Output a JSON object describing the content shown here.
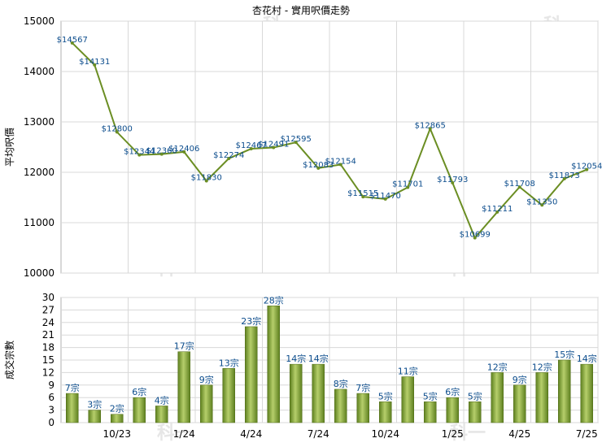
{
  "chart_data": [
    {
      "type": "line",
      "title": "杏花村 - 實用呎價走勢",
      "ylabel": "平均呎價",
      "ylim": [
        10000,
        15000
      ],
      "yticks": [
        10000,
        11000,
        12000,
        13000,
        14000,
        15000
      ],
      "grid": true,
      "color": "#6b8e23",
      "values": [
        14567,
        14131,
        12800,
        12344,
        12360,
        12406,
        11830,
        12274,
        12467,
        12491,
        12595,
        12083,
        12154,
        11515,
        11470,
        11701,
        12865,
        11793,
        10699,
        11211,
        11708,
        11350,
        11873,
        12054
      ],
      "labels": [
        "$14567",
        "$14131",
        "$12800",
        "$12344",
        "$12360",
        "$12406",
        "$11830",
        "$12274",
        "$12467",
        "$12491",
        "$12595",
        "$12083",
        "$12154",
        "$11515",
        "$11470",
        "$11701",
        "$12865",
        "$11793",
        "$10699",
        "$11211",
        "$11708",
        "$11350",
        "$11873",
        "$12054"
      ]
    },
    {
      "type": "bar",
      "ylabel": "成交宗數",
      "ylim": [
        0,
        30
      ],
      "yticks": [
        0,
        3,
        6,
        9,
        12,
        15,
        18,
        21,
        24,
        27,
        30
      ],
      "grid": true,
      "color": "#7a9a2e",
      "values": [
        7,
        3,
        2,
        6,
        4,
        17,
        9,
        13,
        23,
        28,
        14,
        14,
        8,
        7,
        5,
        11,
        5,
        6,
        5,
        12,
        9,
        12,
        15,
        14
      ],
      "labels": [
        "7宗",
        "3宗",
        "2宗",
        "6宗",
        "4宗",
        "17宗",
        "9宗",
        "13宗",
        "23宗",
        "28宗",
        "14宗",
        "14宗",
        "8宗",
        "7宗",
        "5宗",
        "11宗",
        "5宗",
        "6宗",
        "5宗",
        "12宗",
        "9宗",
        "12宗",
        "15宗",
        "14宗"
      ],
      "x_tick_labels": [
        "10/23",
        "1/24",
        "4/24",
        "7/24",
        "10/24",
        "1/25",
        "4/25",
        "7/25"
      ],
      "x_tick_indices": [
        2,
        5,
        8,
        11,
        14,
        17,
        20,
        23
      ]
    }
  ],
  "watermark": "科一"
}
